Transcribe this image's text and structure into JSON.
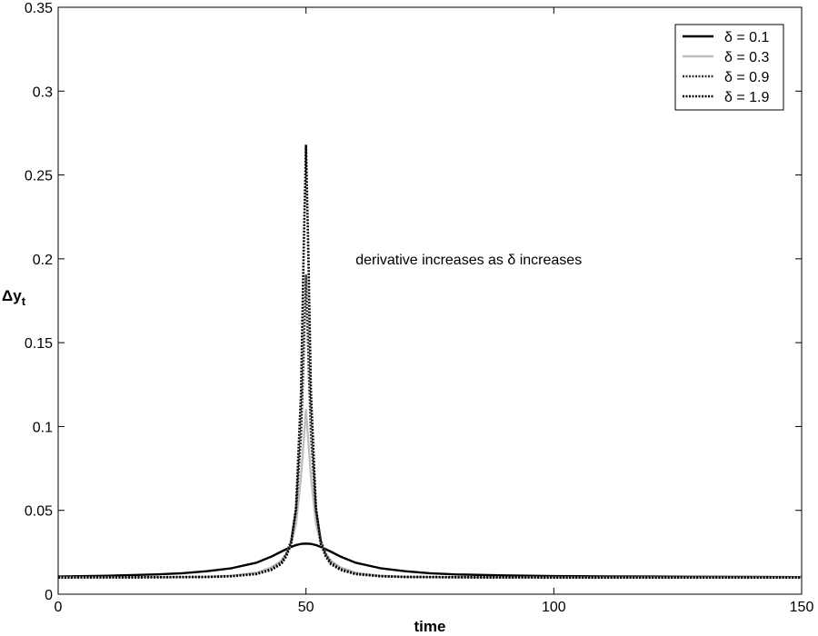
{
  "chart_data": {
    "type": "line",
    "title": "",
    "xlabel": "time",
    "ylabel": "Δy",
    "ylabel_subscript": "t",
    "xlim": [
      0,
      150
    ],
    "ylim": [
      0,
      0.35
    ],
    "xticks": [
      0,
      50,
      100,
      150
    ],
    "xtick_labels": [
      "0",
      "50",
      "100",
      "150"
    ],
    "yticks": [
      0,
      0.05,
      0.1,
      0.15,
      0.2,
      0.25,
      0.3,
      0.35
    ],
    "ytick_labels": [
      "0",
      "0.05",
      "0.1",
      "0.15",
      "0.2",
      "0.25",
      "0.3",
      "0.35"
    ],
    "grid": false,
    "legend_position": "top-right",
    "annotation": {
      "text": "derivative increases as δ increases",
      "x": 60,
      "y": 0.2
    },
    "series": [
      {
        "name": "δ = 0.1",
        "color": "#000000",
        "style": "solid",
        "x": [
          0,
          10,
          20,
          25,
          30,
          35,
          40,
          43,
          45,
          47,
          48,
          49,
          50,
          51,
          52,
          53,
          55,
          57,
          60,
          65,
          70,
          75,
          80,
          90,
          100,
          110,
          120,
          130,
          140,
          150
        ],
        "y": [
          0.0105,
          0.011,
          0.0118,
          0.0125,
          0.0137,
          0.0155,
          0.0188,
          0.0224,
          0.0254,
          0.0282,
          0.0293,
          0.03,
          0.0302,
          0.03,
          0.0293,
          0.0282,
          0.0254,
          0.0224,
          0.0188,
          0.0155,
          0.0137,
          0.0125,
          0.0118,
          0.0112,
          0.0108,
          0.0106,
          0.0105,
          0.0104,
          0.0103,
          0.0102
        ]
      },
      {
        "name": "δ = 0.3",
        "color": "#c0c0c0",
        "style": "solid",
        "x": [
          0,
          20,
          30,
          35,
          40,
          43,
          45,
          46,
          47,
          48,
          49,
          49.5,
          50,
          50.5,
          51,
          52,
          53,
          54,
          55,
          57,
          60,
          65,
          70,
          80,
          100,
          150
        ],
        "y": [
          0.01,
          0.0101,
          0.0104,
          0.011,
          0.0128,
          0.016,
          0.02,
          0.024,
          0.03,
          0.042,
          0.07,
          0.09,
          0.11,
          0.09,
          0.07,
          0.042,
          0.03,
          0.024,
          0.02,
          0.016,
          0.0128,
          0.011,
          0.0104,
          0.0101,
          0.01,
          0.01
        ]
      },
      {
        "name": "δ = 0.9",
        "color": "#333333",
        "style": "dotted",
        "x": [
          0,
          20,
          30,
          35,
          40,
          43,
          45,
          46,
          47,
          48,
          49,
          49.5,
          50,
          50.5,
          51,
          52,
          53,
          54,
          55,
          57,
          60,
          65,
          70,
          80,
          100,
          150
        ],
        "y": [
          0.01,
          0.0101,
          0.0103,
          0.0108,
          0.0122,
          0.015,
          0.019,
          0.024,
          0.032,
          0.05,
          0.095,
          0.14,
          0.19,
          0.14,
          0.095,
          0.05,
          0.032,
          0.024,
          0.019,
          0.015,
          0.0122,
          0.0108,
          0.0103,
          0.0101,
          0.01,
          0.01
        ]
      },
      {
        "name": "δ = 1.9",
        "color": "#000000",
        "style": "dotted",
        "x": [
          0,
          20,
          30,
          35,
          40,
          43,
          45,
          46,
          47,
          48,
          49,
          49.5,
          50,
          50.5,
          51,
          52,
          53,
          54,
          55,
          57,
          60,
          65,
          70,
          80,
          100,
          150
        ],
        "y": [
          0.01,
          0.0101,
          0.0103,
          0.0107,
          0.012,
          0.0145,
          0.018,
          0.0225,
          0.03,
          0.052,
          0.12,
          0.2,
          0.268,
          0.2,
          0.12,
          0.052,
          0.03,
          0.0225,
          0.018,
          0.0145,
          0.012,
          0.0107,
          0.0103,
          0.0101,
          0.01,
          0.01
        ]
      }
    ]
  }
}
